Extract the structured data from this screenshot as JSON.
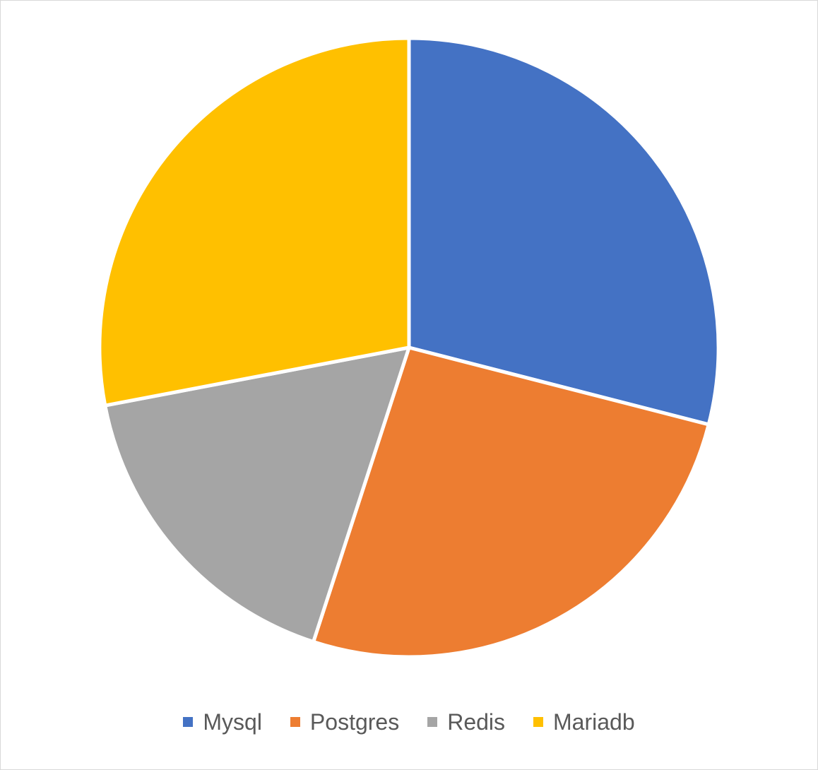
{
  "chart_data": {
    "type": "pie",
    "title": "",
    "start_angle_deg": 0,
    "direction": "clockwise",
    "legend_position": "bottom",
    "slices": [
      {
        "name": "Mysql",
        "value": 29,
        "color": "#4472C4"
      },
      {
        "name": "Postgres",
        "value": 26,
        "color": "#ED7D31"
      },
      {
        "name": "Redis",
        "value": 17,
        "color": "#A5A5A5"
      },
      {
        "name": "Mariadb",
        "value": 28,
        "color": "#FFC000"
      }
    ]
  }
}
